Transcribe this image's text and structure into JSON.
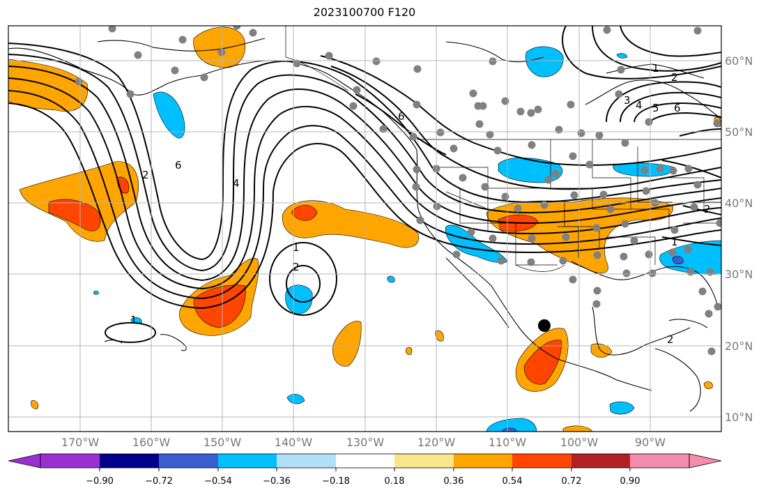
{
  "title": "2023100700 F120",
  "axes": {
    "lon_labels": [
      "170°W",
      "160°W",
      "150°W",
      "140°W",
      "130°W",
      "120°W",
      "110°W",
      "100°W",
      "90°W"
    ],
    "lat_labels": [
      "60°N",
      "50°N",
      "40°N",
      "30°N",
      "20°N",
      "10°N"
    ]
  },
  "contour_labels": [
    "1",
    "2",
    "1",
    "2",
    "3",
    "4",
    "5",
    "6",
    "6",
    "4",
    "2",
    "6",
    "1",
    "2",
    "1",
    "2"
  ],
  "colorbar": {
    "colors": [
      "#9b30d0",
      "#00008b",
      "#3a5fcd",
      "#00bfff",
      "#b0e0f8",
      "#ffffff",
      "#f8e68a",
      "#ffa500",
      "#ff4500",
      "#b22222",
      "#f48cad"
    ],
    "tick_labels": [
      "−0.90",
      "−0.72",
      "−0.54",
      "−0.36",
      "−0.18",
      "0.18",
      "0.36",
      "0.54",
      "0.72",
      "0.90"
    ]
  },
  "legend_colors": {
    "positive_light": "#ffa500",
    "positive_strong": "#ff4500",
    "negative_light": "#00bfff",
    "negative_strong": "#3a5fcd",
    "station": "#808080",
    "grid": "#b4b4b4"
  }
}
